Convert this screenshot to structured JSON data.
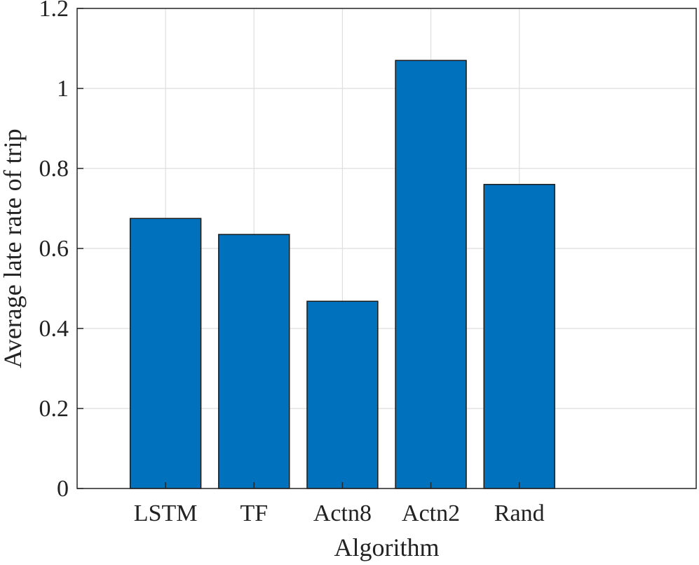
{
  "chart_data": {
    "type": "bar",
    "categories": [
      "LSTM",
      "TF",
      "Actn8",
      "Actn2",
      "Rand"
    ],
    "values": [
      0.675,
      0.635,
      0.468,
      1.07,
      0.76
    ],
    "title": "",
    "xlabel": "Algorithm",
    "ylabel": "Average late rate of trip",
    "ylim": [
      0,
      1.2
    ],
    "yticks": [
      "0",
      "0.2",
      "0.4",
      "0.6",
      "0.8",
      "1",
      "1.2"
    ],
    "grid": true,
    "bar_color": "#0072BD",
    "edge_color": "#1a1a1a"
  }
}
